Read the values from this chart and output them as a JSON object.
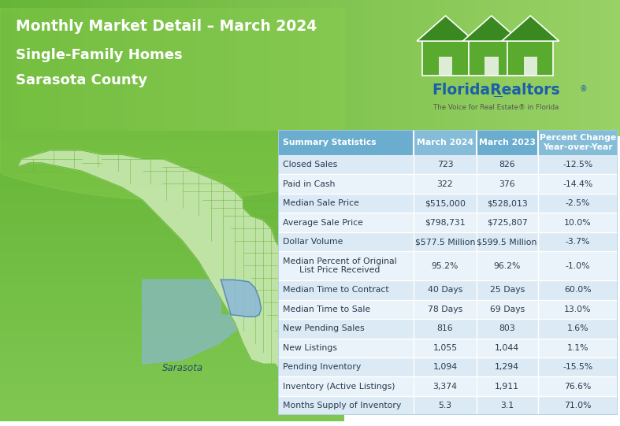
{
  "title_line1": "Monthly Market Detail – March 2024",
  "title_line2": "Single-Family Homes",
  "title_line3": "Sarasota County",
  "header_row": [
    "Summary Statistics",
    "March 2024",
    "March 2023",
    "Percent Change\nYear-over-Year"
  ],
  "rows": [
    [
      "Closed Sales",
      "723",
      "826",
      "-12.5%"
    ],
    [
      "Paid in Cash",
      "322",
      "376",
      "-14.4%"
    ],
    [
      "Median Sale Price",
      "$515,000",
      "$528,013",
      "-2.5%"
    ],
    [
      "Average Sale Price",
      "$798,731",
      "$725,807",
      "10.0%"
    ],
    [
      "Dollar Volume",
      "$577.5 Million",
      "$599.5 Million",
      "-3.7%"
    ],
    [
      "Median Percent of Original\nList Price Received",
      "95.2%",
      "96.2%",
      "-1.0%"
    ],
    [
      "Median Time to Contract",
      "40 Days",
      "25 Days",
      "60.0%"
    ],
    [
      "Median Time to Sale",
      "78 Days",
      "69 Days",
      "13.0%"
    ],
    [
      "New Pending Sales",
      "816",
      "803",
      "1.6%"
    ],
    [
      "New Listings",
      "1,055",
      "1,044",
      "1.1%"
    ],
    [
      "Pending Inventory",
      "1,094",
      "1,294",
      "-15.5%"
    ],
    [
      "Inventory (Active Listings)",
      "3,374",
      "1,911",
      "76.6%"
    ],
    [
      "Months Supply of Inventory",
      "5.3",
      "3.1",
      "71.0%"
    ]
  ],
  "green_light": "#7dc142",
  "green_mid": "#6ab53a",
  "green_dark": "#5a9e30",
  "white_bg": "#ffffff",
  "table_header_bg": "#6aadcf",
  "table_header_bg2": "#85bdd8",
  "table_row_bg_a": "#dbeaf5",
  "table_row_bg_b": "#eaf3f9",
  "table_border": "#ffffff",
  "header_text_color": "#1a3a5c",
  "row_text_color": "#2a3a4c",
  "logo_blue": "#1a5fa8",
  "logo_green": "#5aaa30",
  "sarasota_blue": "#8ab8d8",
  "florida_green": "#c8e8b0",
  "florida_border": "#6ab53a",
  "col_splits": [
    0.0,
    0.4,
    0.585,
    0.765,
    1.0
  ]
}
